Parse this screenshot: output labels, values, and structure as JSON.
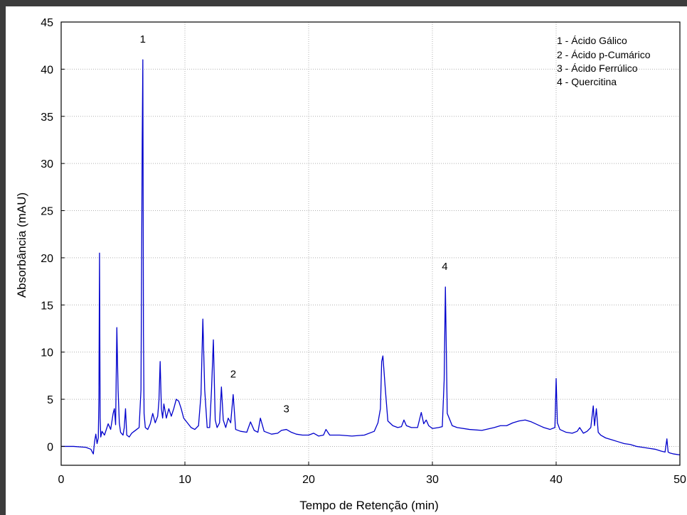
{
  "chart_data": {
    "type": "line",
    "title": "",
    "xlabel": "Tempo de Retenção (min)",
    "ylabel": "Absorbância (mAU)",
    "xlim": [
      0,
      50
    ],
    "ylim": [
      -2,
      45
    ],
    "xticks": [
      0,
      10,
      20,
      30,
      40,
      50
    ],
    "yticks": [
      0,
      5,
      10,
      15,
      20,
      25,
      30,
      35,
      40,
      45
    ],
    "grid": true,
    "legend_position": "top-right",
    "line_color": "#0000cc",
    "legend_entries": [
      "1 - Ácido Gálico",
      "2 - Ácido p-Cumárico",
      "3 - Ácido Ferrúlico",
      "4 - Quercitina"
    ],
    "peak_labels": [
      {
        "text": "1",
        "x": 6.6,
        "y": 41.0
      },
      {
        "text": "2",
        "x": 13.9,
        "y": 5.5
      },
      {
        "text": "3",
        "x": 18.2,
        "y": 1.8
      },
      {
        "text": "4",
        "x": 31.0,
        "y": 16.9
      }
    ],
    "series": [
      {
        "x": [
          0,
          1,
          2,
          2.4,
          2.6,
          2.7,
          2.8,
          2.9,
          3.0,
          3.05,
          3.1,
          3.15,
          3.2,
          3.3,
          3.5,
          3.8,
          4.0,
          4.2,
          4.3,
          4.4,
          4.5,
          4.6,
          4.7,
          4.8,
          5.0,
          5.1,
          5.2,
          5.3,
          5.5,
          5.7,
          5.9,
          6.1,
          6.3,
          6.45,
          6.55,
          6.6,
          6.65,
          6.7,
          6.8,
          7.0,
          7.2,
          7.4,
          7.6,
          7.8,
          7.9,
          8.0,
          8.1,
          8.2,
          8.3,
          8.5,
          8.7,
          8.9,
          9.1,
          9.3,
          9.5,
          9.7,
          9.9,
          10.2,
          10.5,
          10.8,
          11.1,
          11.3,
          11.45,
          11.6,
          11.8,
          12.0,
          12.15,
          12.3,
          12.45,
          12.6,
          12.8,
          12.95,
          13.1,
          13.3,
          13.5,
          13.7,
          13.9,
          14.1,
          14.5,
          15.0,
          15.3,
          15.6,
          15.9,
          16.1,
          16.4,
          17.0,
          17.5,
          17.8,
          18.2,
          18.6,
          19.0,
          19.5,
          20.0,
          20.4,
          20.8,
          21.2,
          21.4,
          21.7,
          22.5,
          23.5,
          24.5,
          25.3,
          25.6,
          25.8,
          25.9,
          26.0,
          26.2,
          26.4,
          26.8,
          27.2,
          27.5,
          27.7,
          27.9,
          28.3,
          28.8,
          29.1,
          29.3,
          29.5,
          29.7,
          30.0,
          30.5,
          30.8,
          30.95,
          31.05,
          31.2,
          31.6,
          32.0,
          33.0,
          34.0,
          35.0,
          35.5,
          36.0,
          36.5,
          37.0,
          37.5,
          38.0,
          38.5,
          39.0,
          39.5,
          39.9,
          40.0,
          40.1,
          40.3,
          40.8,
          41.3,
          41.7,
          41.9,
          42.2,
          42.5,
          42.8,
          43.0,
          43.1,
          43.25,
          43.4,
          43.6,
          44.0,
          44.5,
          45.0,
          45.5,
          46.0,
          46.5,
          47.0,
          47.5,
          48.0,
          48.5,
          48.8,
          48.95,
          49.05,
          49.2,
          49.5,
          50.0
        ],
        "values": [
          0.0,
          0.0,
          -0.1,
          -0.3,
          -0.8,
          0.5,
          1.3,
          0.3,
          0.9,
          5.0,
          20.5,
          3.0,
          1.0,
          1.6,
          1.2,
          2.4,
          1.8,
          3.5,
          4.0,
          2.3,
          12.6,
          6.0,
          2.5,
          1.5,
          1.2,
          2.0,
          4.0,
          1.2,
          1.0,
          1.4,
          1.6,
          1.8,
          2.0,
          6.0,
          32.5,
          41.0,
          12.0,
          3.5,
          2.0,
          1.8,
          2.4,
          3.5,
          2.5,
          3.2,
          4.8,
          9.0,
          4.0,
          3.0,
          4.5,
          3.0,
          4.0,
          3.2,
          4.0,
          5.0,
          4.8,
          4.0,
          3.0,
          2.5,
          2.0,
          1.8,
          2.2,
          5.5,
          13.5,
          6.0,
          2.0,
          2.0,
          6.0,
          11.3,
          2.8,
          2.0,
          2.5,
          6.3,
          2.8,
          2.0,
          3.0,
          2.5,
          5.5,
          1.8,
          1.6,
          1.5,
          2.6,
          1.7,
          1.5,
          3.0,
          1.6,
          1.3,
          1.4,
          1.7,
          1.8,
          1.5,
          1.3,
          1.2,
          1.2,
          1.4,
          1.1,
          1.2,
          1.8,
          1.2,
          1.2,
          1.1,
          1.2,
          1.6,
          2.5,
          4.0,
          9.0,
          9.6,
          6.0,
          2.7,
          2.2,
          2.0,
          2.1,
          2.8,
          2.2,
          2.0,
          2.0,
          3.6,
          2.4,
          2.8,
          2.2,
          1.9,
          2.0,
          2.1,
          7.0,
          16.9,
          3.5,
          2.2,
          2.0,
          1.8,
          1.7,
          2.0,
          2.2,
          2.2,
          2.5,
          2.7,
          2.8,
          2.6,
          2.3,
          2.0,
          1.8,
          2.0,
          7.2,
          2.5,
          1.8,
          1.5,
          1.4,
          1.6,
          2.0,
          1.4,
          1.6,
          2.0,
          4.3,
          2.2,
          4.0,
          1.5,
          1.2,
          0.9,
          0.7,
          0.5,
          0.3,
          0.2,
          0.0,
          -0.1,
          -0.2,
          -0.3,
          -0.5,
          -0.6,
          0.8,
          -0.6,
          -0.7,
          -0.8,
          -0.9
        ]
      }
    ]
  }
}
